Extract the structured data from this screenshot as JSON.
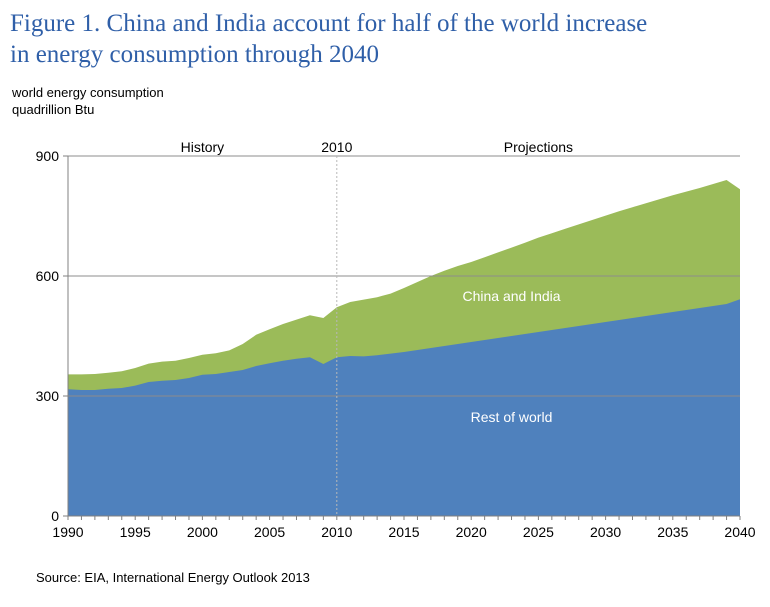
{
  "title_line1": "Figure 1. China and India account for half of the world increase",
  "title_line2": "in energy consumption through 2040",
  "units_line1": "world energy consumption",
  "units_line2": "quadrillion Btu",
  "source": "Source:  EIA, International Energy Outlook 2013",
  "chart_data": {
    "type": "area",
    "stacked": true,
    "xlim": [
      1990,
      2040
    ],
    "ylim": [
      0,
      900
    ],
    "yticks": [
      0,
      300,
      600,
      900
    ],
    "xticks": [
      1990,
      1995,
      2000,
      2005,
      2010,
      2015,
      2020,
      2025,
      2030,
      2035,
      2040
    ],
    "grid": true,
    "annotations": [
      {
        "text": "History",
        "x": 2000
      },
      {
        "text": "2010",
        "x": 2010
      },
      {
        "text": "Projections",
        "x": 2025
      }
    ],
    "divider_x": 2010,
    "x": [
      1990,
      1991,
      1992,
      1993,
      1994,
      1995,
      1996,
      1997,
      1998,
      1999,
      2000,
      2001,
      2002,
      2003,
      2004,
      2005,
      2006,
      2007,
      2008,
      2009,
      2010,
      2011,
      2012,
      2013,
      2014,
      2015,
      2016,
      2017,
      2018,
      2019,
      2020,
      2021,
      2022,
      2023,
      2024,
      2025,
      2026,
      2027,
      2028,
      2029,
      2030,
      2031,
      2032,
      2033,
      2034,
      2035,
      2036,
      2037,
      2038,
      2039,
      2040
    ],
    "series": [
      {
        "name": "Rest of world",
        "color": "#4f81bd",
        "values": [
          317,
          315,
          315,
          318,
          320,
          326,
          335,
          338,
          340,
          345,
          353,
          355,
          360,
          365,
          375,
          382,
          388,
          393,
          397,
          380,
          397,
          400,
          399,
          402,
          406,
          410,
          415,
          420,
          425,
          430,
          435,
          440,
          445,
          450,
          455,
          460,
          465,
          470,
          475,
          480,
          485,
          490,
          495,
          500,
          505,
          510,
          515,
          520,
          525,
          530,
          542
        ]
      },
      {
        "name": "China and India",
        "color": "#9bbb59",
        "values": [
          37,
          39,
          40,
          40,
          42,
          44,
          46,
          48,
          48,
          50,
          50,
          52,
          54,
          65,
          78,
          85,
          92,
          98,
          105,
          115,
          125,
          135,
          142,
          145,
          150,
          160,
          170,
          180,
          188,
          195,
          200,
          207,
          214,
          221,
          228,
          236,
          242,
          248,
          254,
          260,
          266,
          272,
          277,
          282,
          287,
          292,
          296,
          300,
          305,
          310,
          275
        ]
      }
    ]
  }
}
